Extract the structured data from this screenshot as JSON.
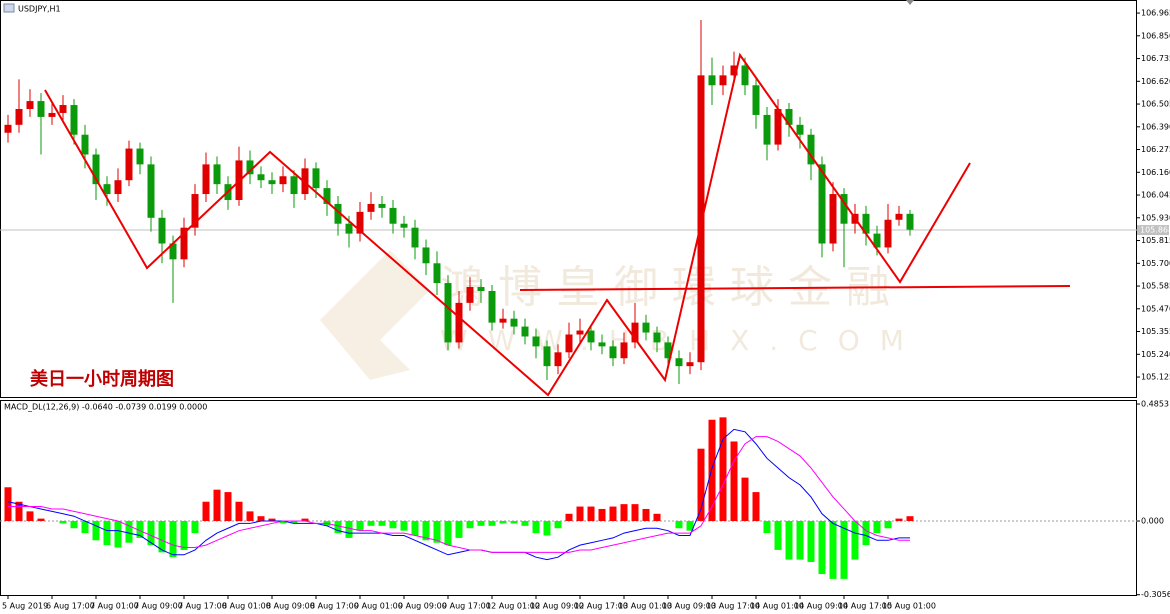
{
  "chart_data": [
    {
      "type": "candlestick",
      "title": "USDJPY,H1",
      "categories": [
        "5 Aug 2019",
        null,
        null,
        null,
        "6 Aug 17:00",
        null,
        null,
        null,
        "7 Aug 01:00",
        null,
        null,
        null,
        "7 Aug 09:00",
        null,
        null,
        null,
        "7 Aug 17:00",
        null,
        null,
        null,
        "8 Aug 01:00",
        null,
        null,
        null,
        "8 Aug 09:00",
        null,
        null,
        null,
        "8 Aug 17:00",
        null,
        null,
        null,
        "9 Aug 01:00",
        null,
        null,
        null,
        "9 Aug 09:00",
        null,
        null,
        null,
        "9 Aug 17:00",
        null,
        null,
        null,
        "12 Aug 01:00",
        null,
        null,
        null,
        "12 Aug 09:00",
        null,
        null,
        null,
        "12 Aug 17:00",
        null,
        null,
        null,
        "13 Aug 01:00",
        null,
        null,
        null,
        "13 Aug 09:00",
        null,
        null,
        null,
        "13 Aug 17:00",
        null,
        null,
        null,
        "14 Aug 01:00",
        null,
        null,
        null,
        "14 Aug 09:00",
        null,
        null,
        null,
        "14 Aug 17:00",
        null,
        null,
        null,
        "15 Aug 01:00",
        null,
        null
      ],
      "open": [
        106.36,
        106.4,
        106.48,
        106.52,
        106.44,
        106.46,
        106.5,
        106.35,
        106.25,
        106.1,
        106.05,
        106.12,
        106.28,
        106.2,
        105.93,
        105.8,
        105.72,
        105.88,
        106.05,
        106.2,
        106.1,
        106.02,
        106.22,
        106.15,
        106.12,
        106.1,
        106.14,
        106.05,
        106.18,
        106.08,
        106.0,
        105.9,
        105.85,
        105.96,
        106.0,
        105.98,
        105.9,
        105.88,
        105.78,
        105.7,
        105.6,
        105.3,
        105.5,
        105.58,
        105.56,
        105.4,
        105.42,
        105.38,
        105.33,
        105.28,
        105.18,
        105.25,
        105.34,
        105.36,
        105.3,
        105.28,
        105.22,
        105.3,
        105.4,
        105.35,
        105.3,
        105.22,
        105.18,
        105.2,
        106.65,
        106.6,
        106.65,
        106.7,
        106.6,
        106.45,
        106.3,
        106.48,
        106.4,
        106.35,
        106.2,
        105.8,
        106.05,
        105.9,
        105.95,
        105.85,
        105.78,
        105.92,
        105.95
      ],
      "high": [
        106.45,
        106.63,
        106.58,
        106.56,
        106.52,
        106.55,
        106.53,
        106.4,
        106.28,
        106.14,
        106.18,
        106.32,
        106.31,
        106.24,
        105.97,
        105.84,
        105.93,
        106.1,
        106.26,
        106.24,
        106.14,
        106.29,
        106.27,
        106.19,
        106.16,
        106.19,
        106.17,
        106.23,
        106.21,
        106.12,
        106.04,
        105.94,
        106.01,
        106.06,
        106.04,
        106.02,
        105.94,
        105.92,
        105.82,
        105.76,
        105.64,
        105.56,
        105.63,
        105.62,
        105.59,
        105.47,
        105.46,
        105.42,
        105.37,
        105.31,
        105.29,
        105.4,
        105.42,
        105.39,
        105.34,
        105.31,
        105.35,
        105.5,
        105.44,
        105.38,
        105.33,
        105.26,
        105.25,
        106.93,
        106.74,
        106.7,
        106.77,
        106.74,
        106.63,
        106.49,
        106.53,
        106.51,
        106.44,
        106.38,
        106.24,
        106.11,
        106.08,
        106.0,
        105.99,
        105.89,
        106.0,
        105.99,
        105.97
      ],
      "low": [
        106.31,
        106.36,
        106.44,
        106.25,
        106.4,
        106.42,
        106.3,
        106.18,
        106.02,
        105.99,
        106.01,
        106.09,
        106.15,
        105.86,
        105.7,
        105.5,
        105.68,
        105.84,
        106.01,
        106.05,
        105.97,
        105.99,
        106.1,
        106.08,
        106.05,
        106.06,
        105.98,
        106.02,
        106.03,
        105.94,
        105.84,
        105.78,
        105.81,
        105.92,
        105.93,
        105.85,
        105.83,
        105.72,
        105.64,
        105.54,
        105.26,
        105.27,
        105.46,
        105.5,
        105.36,
        105.37,
        105.34,
        105.29,
        105.22,
        105.11,
        105.14,
        105.22,
        105.3,
        105.26,
        105.24,
        105.18,
        105.19,
        105.27,
        105.31,
        105.25,
        105.17,
        105.09,
        105.14,
        105.16,
        106.5,
        106.55,
        106.61,
        106.55,
        106.38,
        106.22,
        106.27,
        106.34,
        106.28,
        106.12,
        105.73,
        105.76,
        105.68,
        105.85,
        105.79,
        105.74,
        105.75,
        105.89,
        105.84
      ],
      "close": [
        106.4,
        106.48,
        106.52,
        106.44,
        106.46,
        106.5,
        106.35,
        106.25,
        106.1,
        106.05,
        106.12,
        106.28,
        106.2,
        105.93,
        105.8,
        105.72,
        105.88,
        106.05,
        106.2,
        106.1,
        106.02,
        106.22,
        106.15,
        106.12,
        106.1,
        106.14,
        106.05,
        106.18,
        106.08,
        106.0,
        105.9,
        105.85,
        105.96,
        106.0,
        105.98,
        105.9,
        105.88,
        105.78,
        105.7,
        105.6,
        105.3,
        105.5,
        105.58,
        105.56,
        105.4,
        105.42,
        105.38,
        105.33,
        105.28,
        105.18,
        105.25,
        105.34,
        105.36,
        105.3,
        105.28,
        105.22,
        105.3,
        105.4,
        105.35,
        105.3,
        105.22,
        105.18,
        105.2,
        106.65,
        106.6,
        106.65,
        106.7,
        106.6,
        106.45,
        106.3,
        106.48,
        106.4,
        106.35,
        106.2,
        105.8,
        106.05,
        105.9,
        105.95,
        105.85,
        105.78,
        105.92,
        105.95,
        105.87
      ],
      "up_color": "#e00000",
      "down_color": "#0b9a0b",
      "ylim": [
        105.019,
        107.031
      ],
      "yticks": [
        106.965,
        {
          "value": 106.85,
          "label": "106.850"
        },
        106.735,
        {
          "value": 106.62,
          "label": "106.620"
        },
        106.505,
        {
          "value": 106.39,
          "label": "106.390"
        },
        106.275,
        {
          "value": 106.16,
          "label": "106.160"
        },
        106.045,
        {
          "value": 105.93,
          "label": "105.930"
        },
        105.815,
        {
          "value": 105.7,
          "label": "105.700"
        },
        105.585,
        {
          "value": 105.47,
          "label": "105.470"
        },
        105.355,
        {
          "value": 105.24,
          "label": "105.240"
        },
        105.125
      ],
      "last_price": 105.868,
      "annotation": "美日一小时周期图",
      "watermark_title": "鴻博皇御環球金融",
      "watermark_url": "WWW.HBHX.COM"
    },
    {
      "type": "macd",
      "title": "MACD_DL(12,26,9) -0.0640 -0.0739 0.0199 0.0000",
      "histogram": [
        0.14,
        0.08,
        0.04,
        0.01,
        0.0,
        -0.01,
        -0.03,
        -0.05,
        -0.08,
        -0.1,
        -0.11,
        -0.09,
        -0.07,
        -0.1,
        -0.13,
        -0.15,
        -0.12,
        -0.05,
        0.08,
        0.13,
        0.12,
        0.08,
        0.04,
        0.02,
        0.01,
        -0.01,
        -0.01,
        0.01,
        0.0,
        -0.02,
        -0.05,
        -0.07,
        -0.04,
        -0.02,
        -0.02,
        -0.03,
        -0.04,
        -0.06,
        -0.08,
        -0.09,
        -0.1,
        -0.07,
        -0.03,
        -0.02,
        -0.02,
        -0.01,
        -0.01,
        -0.02,
        -0.05,
        -0.06,
        -0.03,
        0.03,
        0.06,
        0.06,
        0.05,
        0.06,
        0.07,
        0.07,
        0.05,
        0.03,
        0.0,
        -0.03,
        -0.04,
        0.3,
        0.42,
        0.43,
        0.33,
        0.18,
        0.12,
        -0.05,
        -0.12,
        -0.16,
        -0.16,
        -0.17,
        -0.22,
        -0.24,
        -0.24,
        -0.16,
        -0.1,
        -0.05,
        -0.03,
        0.01,
        0.02
      ],
      "macd": [
        0.08,
        0.07,
        0.06,
        0.05,
        0.04,
        0.03,
        0.02,
        0.0,
        -0.02,
        -0.04,
        -0.04,
        -0.05,
        -0.06,
        -0.09,
        -0.12,
        -0.14,
        -0.14,
        -0.12,
        -0.08,
        -0.05,
        -0.03,
        -0.01,
        -0.01,
        0.0,
        0.0,
        0.0,
        -0.01,
        -0.01,
        -0.01,
        -0.02,
        -0.04,
        -0.05,
        -0.05,
        -0.05,
        -0.05,
        -0.06,
        -0.06,
        -0.08,
        -0.1,
        -0.12,
        -0.14,
        -0.13,
        -0.12,
        -0.12,
        -0.13,
        -0.13,
        -0.13,
        -0.13,
        -0.15,
        -0.16,
        -0.15,
        -0.12,
        -0.1,
        -0.09,
        -0.08,
        -0.07,
        -0.05,
        -0.04,
        -0.03,
        -0.03,
        -0.04,
        -0.06,
        -0.06,
        0.05,
        0.22,
        0.34,
        0.38,
        0.37,
        0.32,
        0.26,
        0.22,
        0.18,
        0.15,
        0.1,
        0.03,
        -0.01,
        -0.03,
        -0.05,
        -0.06,
        -0.08,
        -0.08,
        -0.07,
        -0.07
      ],
      "signal": [
        0.06,
        0.06,
        0.06,
        0.06,
        0.05,
        0.05,
        0.04,
        0.03,
        0.02,
        0.01,
        0.0,
        -0.02,
        -0.04,
        -0.06,
        -0.08,
        -0.1,
        -0.11,
        -0.11,
        -0.1,
        -0.08,
        -0.06,
        -0.04,
        -0.03,
        -0.02,
        -0.01,
        0.0,
        0.0,
        0.0,
        -0.01,
        -0.01,
        -0.02,
        -0.03,
        -0.04,
        -0.04,
        -0.05,
        -0.05,
        -0.05,
        -0.06,
        -0.07,
        -0.08,
        -0.1,
        -0.11,
        -0.12,
        -0.12,
        -0.13,
        -0.13,
        -0.13,
        -0.13,
        -0.13,
        -0.13,
        -0.13,
        -0.13,
        -0.12,
        -0.12,
        -0.11,
        -0.1,
        -0.09,
        -0.08,
        -0.07,
        -0.06,
        -0.05,
        -0.05,
        -0.05,
        -0.02,
        0.06,
        0.15,
        0.25,
        0.32,
        0.35,
        0.35,
        0.33,
        0.3,
        0.27,
        0.22,
        0.16,
        0.1,
        0.05,
        0.0,
        -0.04,
        -0.06,
        -0.07,
        -0.08,
        -0.08
      ],
      "positive_color": "#ff0000",
      "negative_color": "#00ff00",
      "macd_color": "#0000ff",
      "signal_color": "#ff00ff",
      "ylim": [
        -0.311,
        0.502
      ],
      "yticks": [
        0.4853,
        {
          "value": 0,
          "label": "0.000"
        },
        -0.3056
      ]
    }
  ]
}
